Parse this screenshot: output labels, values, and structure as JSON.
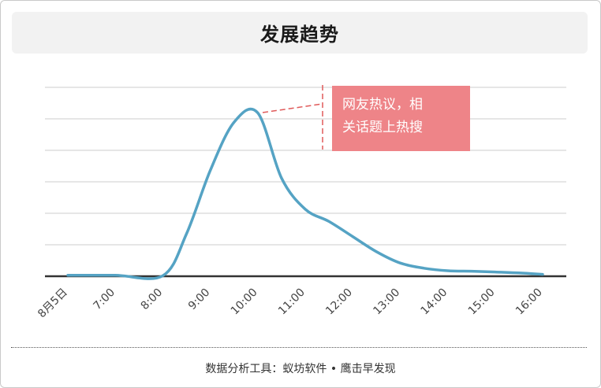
{
  "header": {
    "title": "发展趋势"
  },
  "footer": {
    "text": "数据分析工具：蚁坊软件 • 鹰击早发现"
  },
  "annotation": {
    "lines": [
      "网友热议，相",
      "关话题上热搜"
    ]
  },
  "colors": {
    "line": "#55a3c4",
    "grid": "#cccccc",
    "baseline": "#333333",
    "annotation_bg": "#ee8488",
    "annotation_text": "#ffffff",
    "leader": "#e05a5a"
  },
  "chart_data": {
    "type": "line",
    "title": "发展趋势",
    "xlabel": "",
    "ylabel": "",
    "categories": [
      "8月5日",
      "7:00",
      "8:00",
      "9:00",
      "10:00",
      "11:00",
      "12:00",
      "13:00",
      "14:00",
      "15:00",
      "16:00"
    ],
    "x": [
      0,
      1,
      2,
      2.5,
      3,
      3.5,
      4,
      4.5,
      5,
      5.5,
      6,
      6.5,
      7,
      7.5,
      8,
      8.5,
      9,
      9.5,
      10
    ],
    "values": [
      0.1,
      0.1,
      0.05,
      4.5,
      11.2,
      16.3,
      17.3,
      10.4,
      7.1,
      5.8,
      4.2,
      2.6,
      1.4,
      0.85,
      0.58,
      0.53,
      0.45,
      0.35,
      0.2
    ],
    "ylim": [
      0,
      20
    ],
    "y_gridlines": 6,
    "grid": true,
    "show_y_labels": false,
    "legend": "none"
  }
}
